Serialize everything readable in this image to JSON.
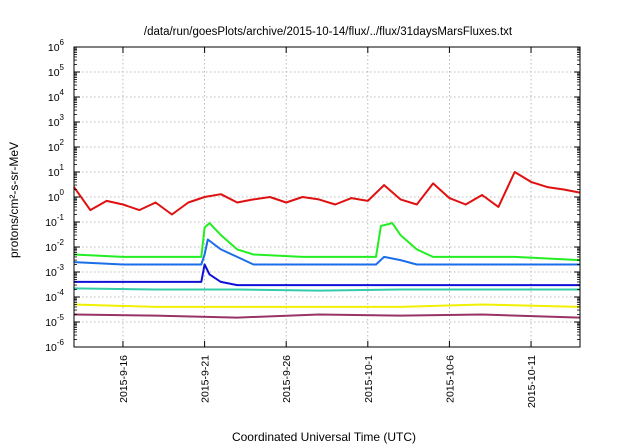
{
  "chart_data": {
    "type": "line",
    "title": "/data/run/goesPlots/archive/2015-10-14/flux/../flux/31daysMarsFluxes.txt",
    "xlabel": "Coordinated Universal Time (UTC)",
    "ylabel": "protons/cm²-s-sr-MeV",
    "yscale": "log",
    "ylim": [
      1e-06,
      1000000.0
    ],
    "xlim": [
      "2015-09-13",
      "2015-10-14"
    ],
    "grid": true,
    "legend": "none",
    "x_ticks": [
      "2015-9-16",
      "2015-9-21",
      "2015-9-26",
      "2015-10-1",
      "2015-10-6",
      "2015-10-11"
    ],
    "y_ticks": [
      {
        "base": "10",
        "exp": "-6"
      },
      {
        "base": "10",
        "exp": "-5"
      },
      {
        "base": "10",
        "exp": "-4"
      },
      {
        "base": "10",
        "exp": "-3"
      },
      {
        "base": "10",
        "exp": "-2"
      },
      {
        "base": "10",
        "exp": "-1"
      },
      {
        "base": "10",
        "exp": "0"
      },
      {
        "base": "10",
        "exp": "1"
      },
      {
        "base": "10",
        "exp": "2"
      },
      {
        "base": "10",
        "exp": "3"
      },
      {
        "base": "10",
        "exp": "4"
      },
      {
        "base": "10",
        "exp": "5"
      },
      {
        "base": "10",
        "exp": "6"
      }
    ],
    "series": [
      {
        "color": "#e01010",
        "x": [
          "2015-09-13",
          "2015-09-14",
          "2015-09-15",
          "2015-09-16",
          "2015-09-17",
          "2015-09-18",
          "2015-09-19",
          "2015-09-20",
          "2015-09-21",
          "2015-09-22",
          "2015-09-23",
          "2015-09-24",
          "2015-09-25",
          "2015-09-26",
          "2015-09-27",
          "2015-09-28",
          "2015-09-29",
          "2015-09-30",
          "2015-10-01",
          "2015-10-02",
          "2015-10-03",
          "2015-10-04",
          "2015-10-05",
          "2015-10-06",
          "2015-10-07",
          "2015-10-08",
          "2015-10-09",
          "2015-10-10",
          "2015-10-11",
          "2015-10-12",
          "2015-10-13",
          "2015-10-14"
        ],
        "values": [
          2.5,
          0.3,
          0.7,
          0.5,
          0.3,
          0.6,
          0.2,
          0.6,
          1.0,
          1.3,
          0.6,
          0.8,
          1.0,
          0.6,
          1.0,
          0.8,
          0.5,
          0.9,
          0.7,
          3.0,
          0.8,
          0.5,
          3.5,
          0.9,
          0.5,
          1.2,
          0.4,
          10.0,
          4.0,
          2.5,
          2.0,
          1.5
        ]
      },
      {
        "color": "#22ee22",
        "x": [
          "2015-09-13",
          "2015-09-16",
          "2015-09-19",
          "2015-09-20.8",
          "2015-09-21",
          "2015-09-21.3",
          "2015-09-22",
          "2015-09-23",
          "2015-09-24",
          "2015-09-27",
          "2015-09-30",
          "2015-10-01.5",
          "2015-10-01.8",
          "2015-10-02.5",
          "2015-10-03",
          "2015-10-04",
          "2015-10-05",
          "2015-10-10",
          "2015-10-14"
        ],
        "values": [
          0.005,
          0.004,
          0.004,
          0.004,
          0.06,
          0.09,
          0.03,
          0.008,
          0.005,
          0.004,
          0.004,
          0.004,
          0.07,
          0.09,
          0.03,
          0.008,
          0.004,
          0.004,
          0.003
        ]
      },
      {
        "color": "#1a6fe8",
        "x": [
          "2015-09-13",
          "2015-09-16",
          "2015-09-20.8",
          "2015-09-21",
          "2015-09-21.2",
          "2015-09-22",
          "2015-09-23",
          "2015-09-24",
          "2015-09-28",
          "2015-10-01.5",
          "2015-10-02",
          "2015-10-03",
          "2015-10-04",
          "2015-10-08",
          "2015-10-14"
        ],
        "values": [
          0.0025,
          0.002,
          0.002,
          0.005,
          0.02,
          0.008,
          0.004,
          0.002,
          0.002,
          0.002,
          0.004,
          0.003,
          0.002,
          0.002,
          0.002
        ]
      },
      {
        "color": "#1010d8",
        "x": [
          "2015-09-13",
          "2015-09-17",
          "2015-09-20.8",
          "2015-09-21",
          "2015-09-21.3",
          "2015-09-22",
          "2015-09-23",
          "2015-09-28",
          "2015-10-03",
          "2015-10-08",
          "2015-10-14"
        ],
        "values": [
          0.0004,
          0.0004,
          0.0004,
          0.002,
          0.0008,
          0.0004,
          0.0003,
          0.0003,
          0.0003,
          0.0003,
          0.0003
        ]
      },
      {
        "color": "#33ccaa",
        "x": [
          "2015-09-13",
          "2015-09-18",
          "2015-09-23",
          "2015-09-28",
          "2015-10-03",
          "2015-10-08",
          "2015-10-14"
        ],
        "values": [
          0.00022,
          0.0002,
          0.0002,
          0.00018,
          0.0002,
          0.0002,
          0.0002
        ]
      },
      {
        "color": "#f0f000",
        "x": [
          "2015-09-13",
          "2015-09-18",
          "2015-09-23",
          "2015-09-28",
          "2015-10-03",
          "2015-10-08",
          "2015-10-14"
        ],
        "values": [
          5e-05,
          4e-05,
          4e-05,
          4e-05,
          4e-05,
          5e-05,
          4e-05
        ]
      },
      {
        "color": "#993366",
        "x": [
          "2015-09-13",
          "2015-09-18",
          "2015-09-23",
          "2015-09-28",
          "2015-10-03",
          "2015-10-08",
          "2015-10-14"
        ],
        "values": [
          2e-05,
          1.8e-05,
          1.5e-05,
          2e-05,
          1.8e-05,
          2e-05,
          1.5e-05
        ]
      }
    ]
  }
}
